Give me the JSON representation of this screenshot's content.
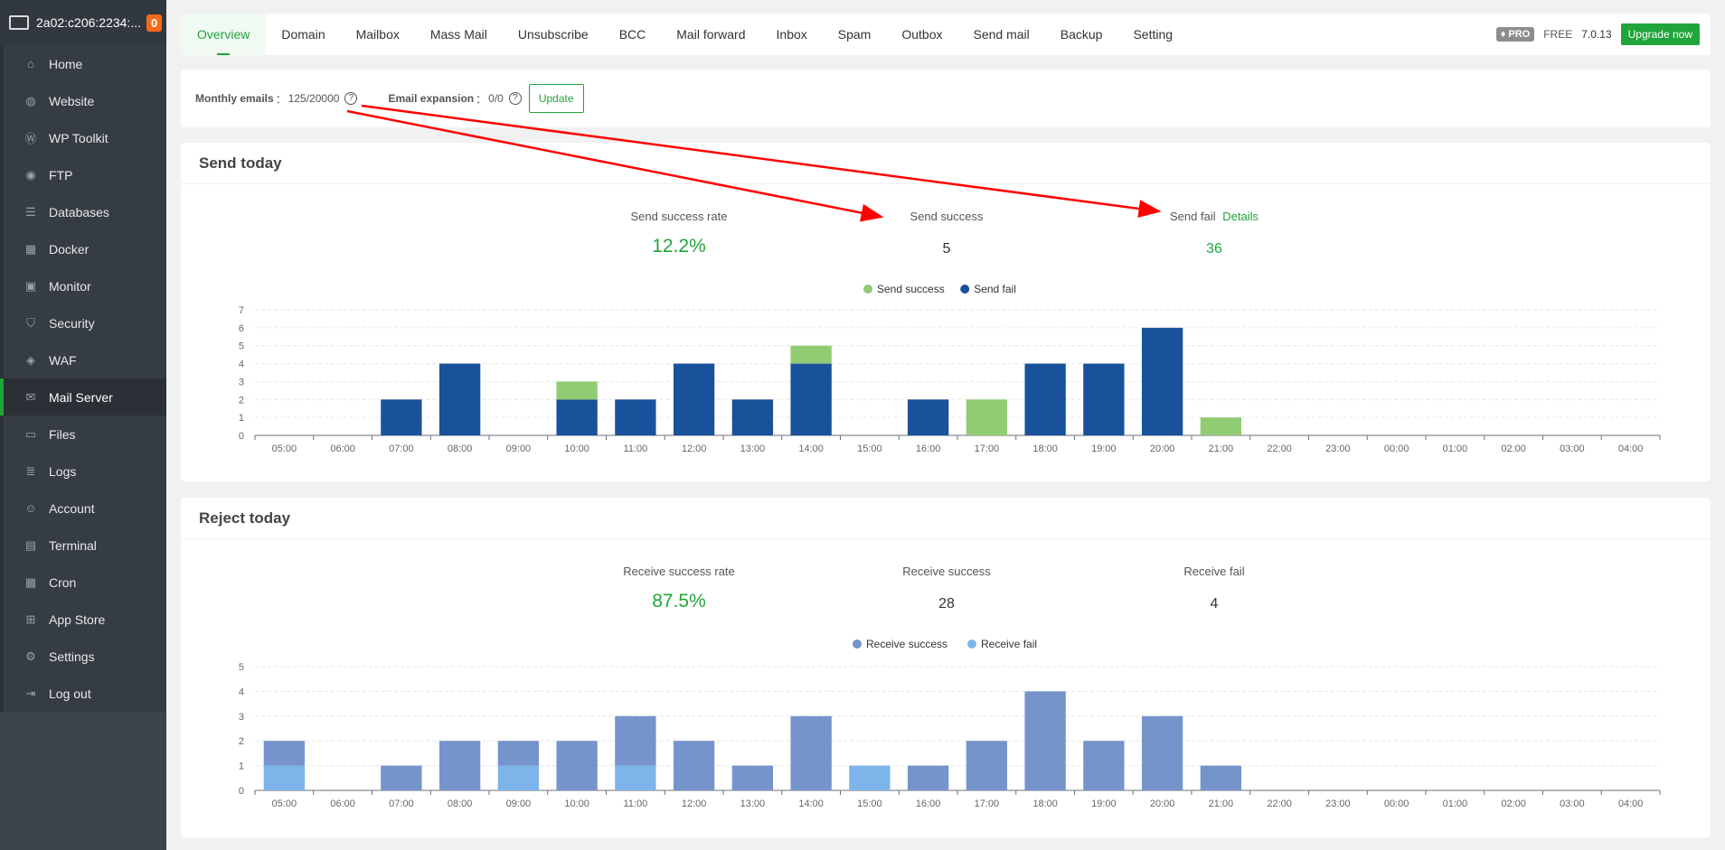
{
  "server": {
    "name": "2a02:c206:2234:...",
    "badge": "0"
  },
  "sidebar": {
    "items": [
      {
        "label": "Home",
        "icon": "home-icon",
        "g": "⌂"
      },
      {
        "label": "Website",
        "icon": "globe-icon",
        "g": "◍"
      },
      {
        "label": "WP Toolkit",
        "icon": "wordpress-icon",
        "g": "Ⓦ"
      },
      {
        "label": "FTP",
        "icon": "ftp-icon",
        "g": "◉"
      },
      {
        "label": "Databases",
        "icon": "database-icon",
        "g": "☰"
      },
      {
        "label": "Docker",
        "icon": "docker-icon",
        "g": "▦"
      },
      {
        "label": "Monitor",
        "icon": "monitor-icon",
        "g": "▣"
      },
      {
        "label": "Security",
        "icon": "shield-icon",
        "g": "⛉"
      },
      {
        "label": "WAF",
        "icon": "waf-shield-icon",
        "g": "◈"
      },
      {
        "label": "Mail Server",
        "icon": "mail-icon",
        "g": "✉"
      },
      {
        "label": "Files",
        "icon": "folder-icon",
        "g": "▭"
      },
      {
        "label": "Logs",
        "icon": "logs-icon",
        "g": "≣"
      },
      {
        "label": "Account",
        "icon": "users-icon",
        "g": "☺"
      },
      {
        "label": "Terminal",
        "icon": "terminal-icon",
        "g": "▤"
      },
      {
        "label": "Cron",
        "icon": "calendar-icon",
        "g": "▦"
      },
      {
        "label": "App Store",
        "icon": "apps-icon",
        "g": "⊞"
      },
      {
        "label": "Settings",
        "icon": "gear-icon",
        "g": "⚙"
      },
      {
        "label": "Log out",
        "icon": "logout-icon",
        "g": "⇥"
      }
    ],
    "active": 9
  },
  "tabs": [
    "Overview",
    "Domain",
    "Mailbox",
    "Mass Mail",
    "Unsubscribe",
    "BCC",
    "Mail forward",
    "Inbox",
    "Spam",
    "Outbox",
    "Send mail",
    "Backup",
    "Setting"
  ],
  "nav_right": {
    "pro": "PRO",
    "free": "FREE",
    "version": "7.0.13",
    "upgrade": "Upgrade now"
  },
  "stats": {
    "monthly_label": "Monthly emails",
    "monthly_value": "125/20000",
    "expansion_label": "Email expansion",
    "expansion_value": "0/0",
    "sep": "：",
    "update": "Update"
  },
  "send": {
    "title": "Send today",
    "rate_label": "Send success rate",
    "rate": "12.2%",
    "success_label": "Send success",
    "success": "5",
    "fail_label": "Send fail",
    "details": "Details",
    "fail": "36"
  },
  "reject": {
    "title": "Reject today",
    "rate_label": "Receive success rate",
    "rate": "87.5%",
    "success_label": "Receive success",
    "success": "28",
    "fail_label": "Receive fail",
    "fail": "4"
  },
  "chart_data": [
    {
      "type": "bar",
      "stacked": true,
      "title": "Send today",
      "categories": [
        "05:00",
        "06:00",
        "07:00",
        "08:00",
        "09:00",
        "10:00",
        "11:00",
        "12:00",
        "13:00",
        "14:00",
        "15:00",
        "16:00",
        "17:00",
        "18:00",
        "19:00",
        "20:00",
        "21:00",
        "22:00",
        "23:00",
        "00:00",
        "01:00",
        "02:00",
        "03:00",
        "04:00"
      ],
      "series": [
        {
          "name": "Send fail",
          "color": "#1a519b",
          "values": [
            0,
            0,
            2,
            4,
            0,
            2,
            2,
            4,
            2,
            4,
            0,
            2,
            0,
            4,
            4,
            6,
            0,
            0,
            0,
            0,
            0,
            0,
            0,
            0
          ]
        },
        {
          "name": "Send success",
          "color": "#91cb74",
          "values": [
            0,
            0,
            0,
            0,
            0,
            1,
            0,
            0,
            0,
            1,
            0,
            0,
            2,
            0,
            0,
            0,
            1,
            0,
            0,
            0,
            0,
            0,
            0,
            0
          ]
        }
      ],
      "legend": [
        "Send success",
        "Send fail"
      ],
      "legend_colors": [
        "#91cb74",
        "#1a519b"
      ],
      "ylim": [
        0,
        7
      ],
      "yticks": [
        0,
        1,
        2,
        3,
        4,
        5,
        6,
        7
      ],
      "legend_position": "top-center"
    },
    {
      "type": "bar",
      "stacked": true,
      "title": "Reject today",
      "categories": [
        "05:00",
        "06:00",
        "07:00",
        "08:00",
        "09:00",
        "10:00",
        "11:00",
        "12:00",
        "13:00",
        "14:00",
        "15:00",
        "16:00",
        "17:00",
        "18:00",
        "19:00",
        "20:00",
        "21:00",
        "22:00",
        "23:00",
        "00:00",
        "01:00",
        "02:00",
        "03:00",
        "04:00"
      ],
      "series": [
        {
          "name": "Receive fail",
          "color": "#7db5ea",
          "values": [
            1,
            0,
            0,
            0,
            1,
            0,
            1,
            0,
            0,
            0,
            1,
            0,
            0,
            0,
            0,
            0,
            0,
            0,
            0,
            0,
            0,
            0,
            0,
            0
          ]
        },
        {
          "name": "Receive success",
          "color": "#7594cb",
          "values": [
            1,
            0,
            1,
            2,
            1,
            2,
            2,
            2,
            1,
            3,
            0,
            1,
            2,
            4,
            2,
            3,
            1,
            0,
            0,
            0,
            0,
            0,
            0,
            0
          ]
        }
      ],
      "legend": [
        "Receive success",
        "Receive fail"
      ],
      "legend_colors": [
        "#7594cb",
        "#7db5ea"
      ],
      "ylim": [
        0,
        5
      ],
      "yticks": [
        0,
        1,
        2,
        3,
        4,
        5
      ],
      "legend_position": "top-center"
    }
  ]
}
